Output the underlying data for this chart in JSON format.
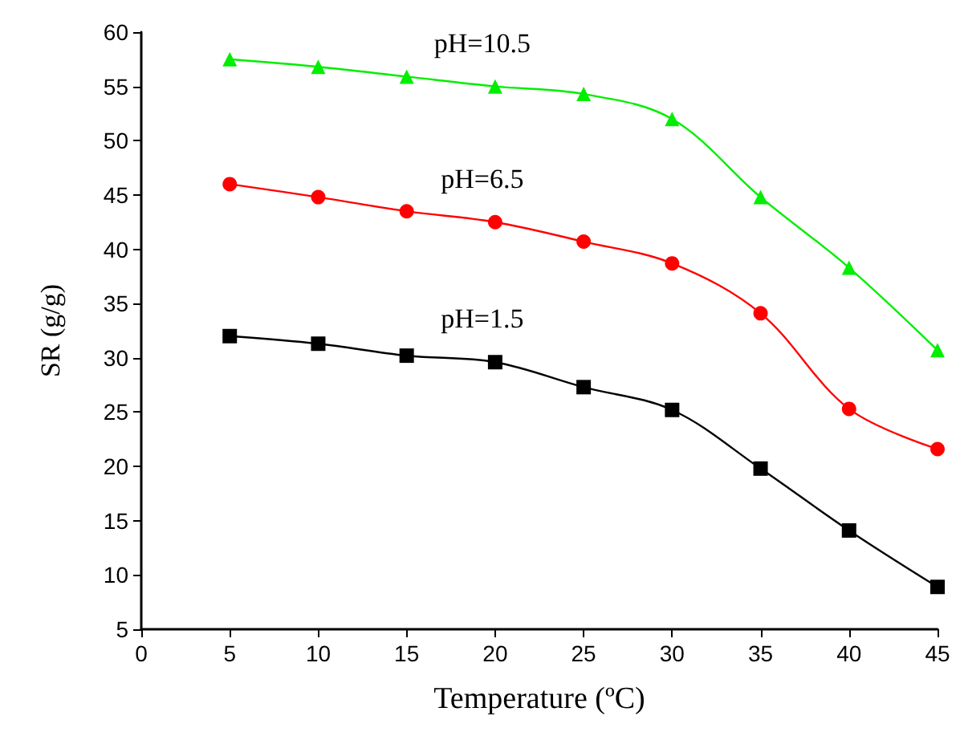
{
  "chart_data": {
    "type": "line",
    "xlabel": "Temperature (ºC)",
    "ylabel": "SR (g/g)",
    "x": [
      5,
      10,
      15,
      20,
      25,
      30,
      35,
      40,
      45
    ],
    "series": [
      {
        "name": "pH=10.5",
        "color": "#00ee00",
        "marker": "triangle",
        "values": [
          57.5,
          56.8,
          55.9,
          55.0,
          54.3,
          52.0,
          44.8,
          38.3,
          30.7
        ]
      },
      {
        "name": "pH=6.5",
        "color": "#ff0000",
        "marker": "circle",
        "values": [
          46.0,
          44.8,
          43.5,
          42.5,
          40.7,
          38.7,
          34.1,
          25.3,
          21.6
        ]
      },
      {
        "name": "pH=1.5",
        "color": "#000000",
        "marker": "square",
        "values": [
          32.0,
          31.3,
          30.2,
          29.6,
          27.3,
          25.2,
          19.8,
          14.1,
          8.9
        ]
      }
    ],
    "xlim": [
      0,
      45
    ],
    "xticks": [
      0,
      5,
      10,
      15,
      20,
      25,
      30,
      35,
      40,
      45
    ],
    "ylim": [
      5,
      60
    ],
    "yticks": [
      5,
      10,
      15,
      20,
      25,
      30,
      35,
      40,
      45,
      50,
      55,
      60
    ],
    "grid": false,
    "legend": false
  }
}
